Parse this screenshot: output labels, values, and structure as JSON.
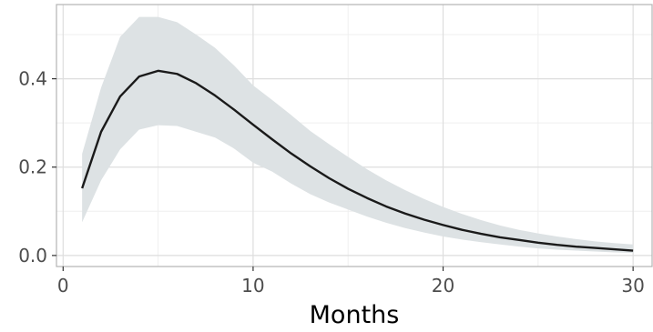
{
  "chart_data": {
    "type": "line",
    "title": "",
    "xlabel": "Months",
    "ylabel": "",
    "xlim": [
      -0.35,
      31.0
    ],
    "ylim": [
      -0.025,
      0.568
    ],
    "x_ticks": [
      0,
      10,
      20,
      30
    ],
    "x_tick_labels": [
      "0",
      "10",
      "20",
      "30"
    ],
    "y_ticks": [
      0.0,
      0.2,
      0.4
    ],
    "y_tick_labels": [
      "0.0",
      "0.2",
      "0.4"
    ],
    "grid": true,
    "legend": "none",
    "series": [
      {
        "x": [
          1,
          2,
          3,
          4,
          5,
          6,
          7,
          8,
          9,
          10,
          11,
          12,
          13,
          14,
          15,
          16,
          17,
          18,
          19,
          20,
          21,
          22,
          23,
          24,
          25,
          26,
          27,
          28,
          29,
          30
        ],
        "y": [
          0.152,
          0.28,
          0.36,
          0.405,
          0.418,
          0.411,
          0.39,
          0.362,
          0.33,
          0.296,
          0.263,
          0.231,
          0.202,
          0.175,
          0.151,
          0.13,
          0.111,
          0.095,
          0.081,
          0.069,
          0.058,
          0.049,
          0.041,
          0.035,
          0.029,
          0.024,
          0.02,
          0.017,
          0.014,
          0.011
        ],
        "lower": [
          0.075,
          0.17,
          0.24,
          0.285,
          0.295,
          0.293,
          0.28,
          0.267,
          0.242,
          0.21,
          0.19,
          0.163,
          0.139,
          0.12,
          0.104,
          0.088,
          0.074,
          0.062,
          0.052,
          0.043,
          0.036,
          0.03,
          0.025,
          0.02,
          0.016,
          0.013,
          0.011,
          0.009,
          0.007,
          0.006
        ],
        "upper": [
          0.23,
          0.38,
          0.495,
          0.54,
          0.54,
          0.528,
          0.5,
          0.47,
          0.43,
          0.385,
          0.352,
          0.318,
          0.282,
          0.252,
          0.223,
          0.195,
          0.17,
          0.148,
          0.128,
          0.11,
          0.094,
          0.08,
          0.068,
          0.058,
          0.05,
          0.043,
          0.037,
          0.032,
          0.028,
          0.025
        ]
      }
    ],
    "colors": {
      "line": "#1a1a1a",
      "band": "#dde2e4",
      "grid_major": "#dedede",
      "grid_minor": "#efefef",
      "panel_border": "#b3b3b3"
    }
  }
}
